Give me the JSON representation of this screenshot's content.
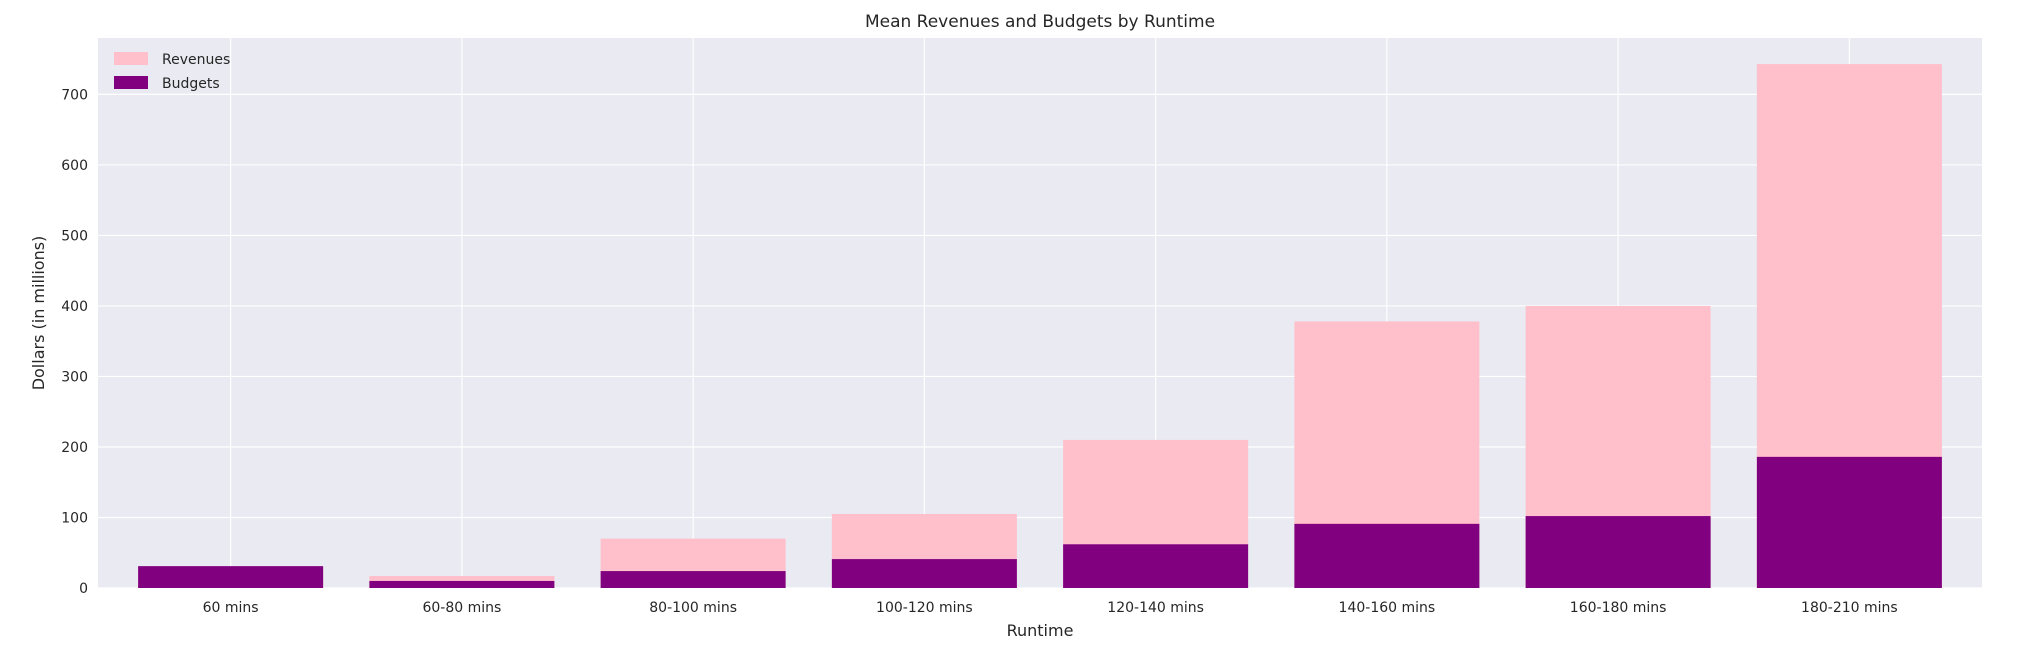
{
  "chart_data": {
    "type": "bar",
    "stacking": "overlay",
    "title": "Mean Revenues and Budgets by Runtime",
    "xlabel": "Runtime",
    "ylabel": "Dollars (in millions)",
    "ylim": [
      0,
      780
    ],
    "yticks": [
      0,
      100,
      200,
      300,
      400,
      500,
      600,
      700
    ],
    "grid": true,
    "legend_position": "top-left",
    "categories": [
      "60 mins",
      "60-80 mins",
      "80-100 mins",
      "100-120 mins",
      "120-140 mins",
      "140-160 mins",
      "160-180 mins",
      "180-210 mins"
    ],
    "series": [
      {
        "name": "Revenues",
        "color": "#FFC0CB",
        "values": [
          30,
          17,
          70,
          105,
          210,
          378,
          400,
          743
        ]
      },
      {
        "name": "Budgets",
        "color": "#800080",
        "values": [
          31,
          10,
          24,
          41,
          62,
          91,
          102,
          186
        ]
      }
    ],
    "background_color": "#EAEAF2",
    "grid_color": "#FFFFFF"
  }
}
